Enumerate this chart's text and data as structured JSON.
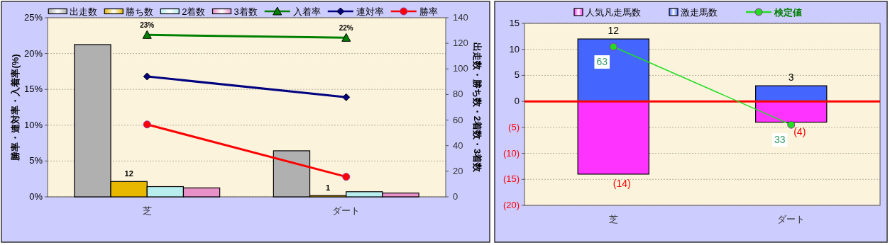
{
  "chart_data": [
    {
      "type": "bar",
      "categories": [
        "芝",
        "ダート"
      ],
      "ylabel": "勝率・連対率・入着率(%)",
      "y2label": "出走数・勝ち数・2着数・3着数",
      "ylim": [
        0,
        25
      ],
      "yticks": [
        {
          "value": 0,
          "label": "0%"
        },
        {
          "value": 5,
          "label": "5%"
        },
        {
          "value": 10,
          "label": "10%"
        },
        {
          "value": 15,
          "label": "15%"
        },
        {
          "value": 20,
          "label": "20%"
        },
        {
          "value": 25,
          "label": "25%"
        }
      ],
      "y2lim": [
        0,
        140
      ],
      "y2ticks": [
        0,
        20,
        40,
        60,
        80,
        100,
        120,
        140
      ],
      "grid": "y",
      "legend": "top",
      "series": [
        {
          "name": "出走数",
          "axis": "y2",
          "color": "#b0b0b0",
          "values": [
            119,
            36
          ]
        },
        {
          "name": "勝ち数",
          "axis": "y2",
          "color": "#e8b800",
          "values": [
            12,
            1
          ],
          "value_labels": [
            "12",
            "1"
          ]
        },
        {
          "name": "2着数",
          "axis": "y2",
          "color": "#b8eeee",
          "values": [
            8,
            4
          ]
        },
        {
          "name": "3着数",
          "axis": "y2",
          "color": "#e890c8",
          "values": [
            7,
            3
          ]
        },
        {
          "name": "入着率",
          "type": "line",
          "axis": "y",
          "color": "#008000",
          "marker": "triangle",
          "values": [
            22.6,
            22.2
          ],
          "value_labels": [
            "23%",
            "22%"
          ]
        },
        {
          "name": "連対率",
          "type": "line",
          "axis": "y",
          "color": "#000080",
          "marker": "diamond",
          "values": [
            16.8,
            13.9
          ]
        },
        {
          "name": "勝率",
          "type": "line",
          "axis": "y",
          "color": "#ff0000",
          "marker": "circle",
          "values": [
            10.1,
            2.8
          ]
        }
      ]
    },
    {
      "type": "bar",
      "categories": [
        "芝",
        "ダート"
      ],
      "stacked": true,
      "ylim": [
        -20,
        15
      ],
      "yticks": [
        {
          "value": -20,
          "label": "(20)"
        },
        {
          "value": -15,
          "label": "(15)"
        },
        {
          "value": -10,
          "label": "(10)"
        },
        {
          "value": -5,
          "label": "(5)"
        },
        0,
        5,
        10,
        15
      ],
      "y2lim": [
        2,
        72
      ],
      "grid": "y",
      "legend": "top",
      "ref_lines": [
        {
          "axis": "y",
          "value": 0,
          "color": "#ff0000"
        }
      ],
      "series": [
        {
          "name": "人気凡走馬数",
          "color": "#ff33ff",
          "values": [
            -14,
            -4
          ],
          "value_labels": [
            "(14)",
            "(4)"
          ]
        },
        {
          "name": "激走馬数",
          "color": "#4466ff",
          "values": [
            12,
            3
          ],
          "value_labels": [
            "12",
            "3"
          ]
        },
        {
          "name": "検定値",
          "type": "line",
          "axis": "y2",
          "color": "#22dd22",
          "marker": "circle",
          "values": [
            63,
            33
          ],
          "data_labels": true
        }
      ]
    }
  ]
}
